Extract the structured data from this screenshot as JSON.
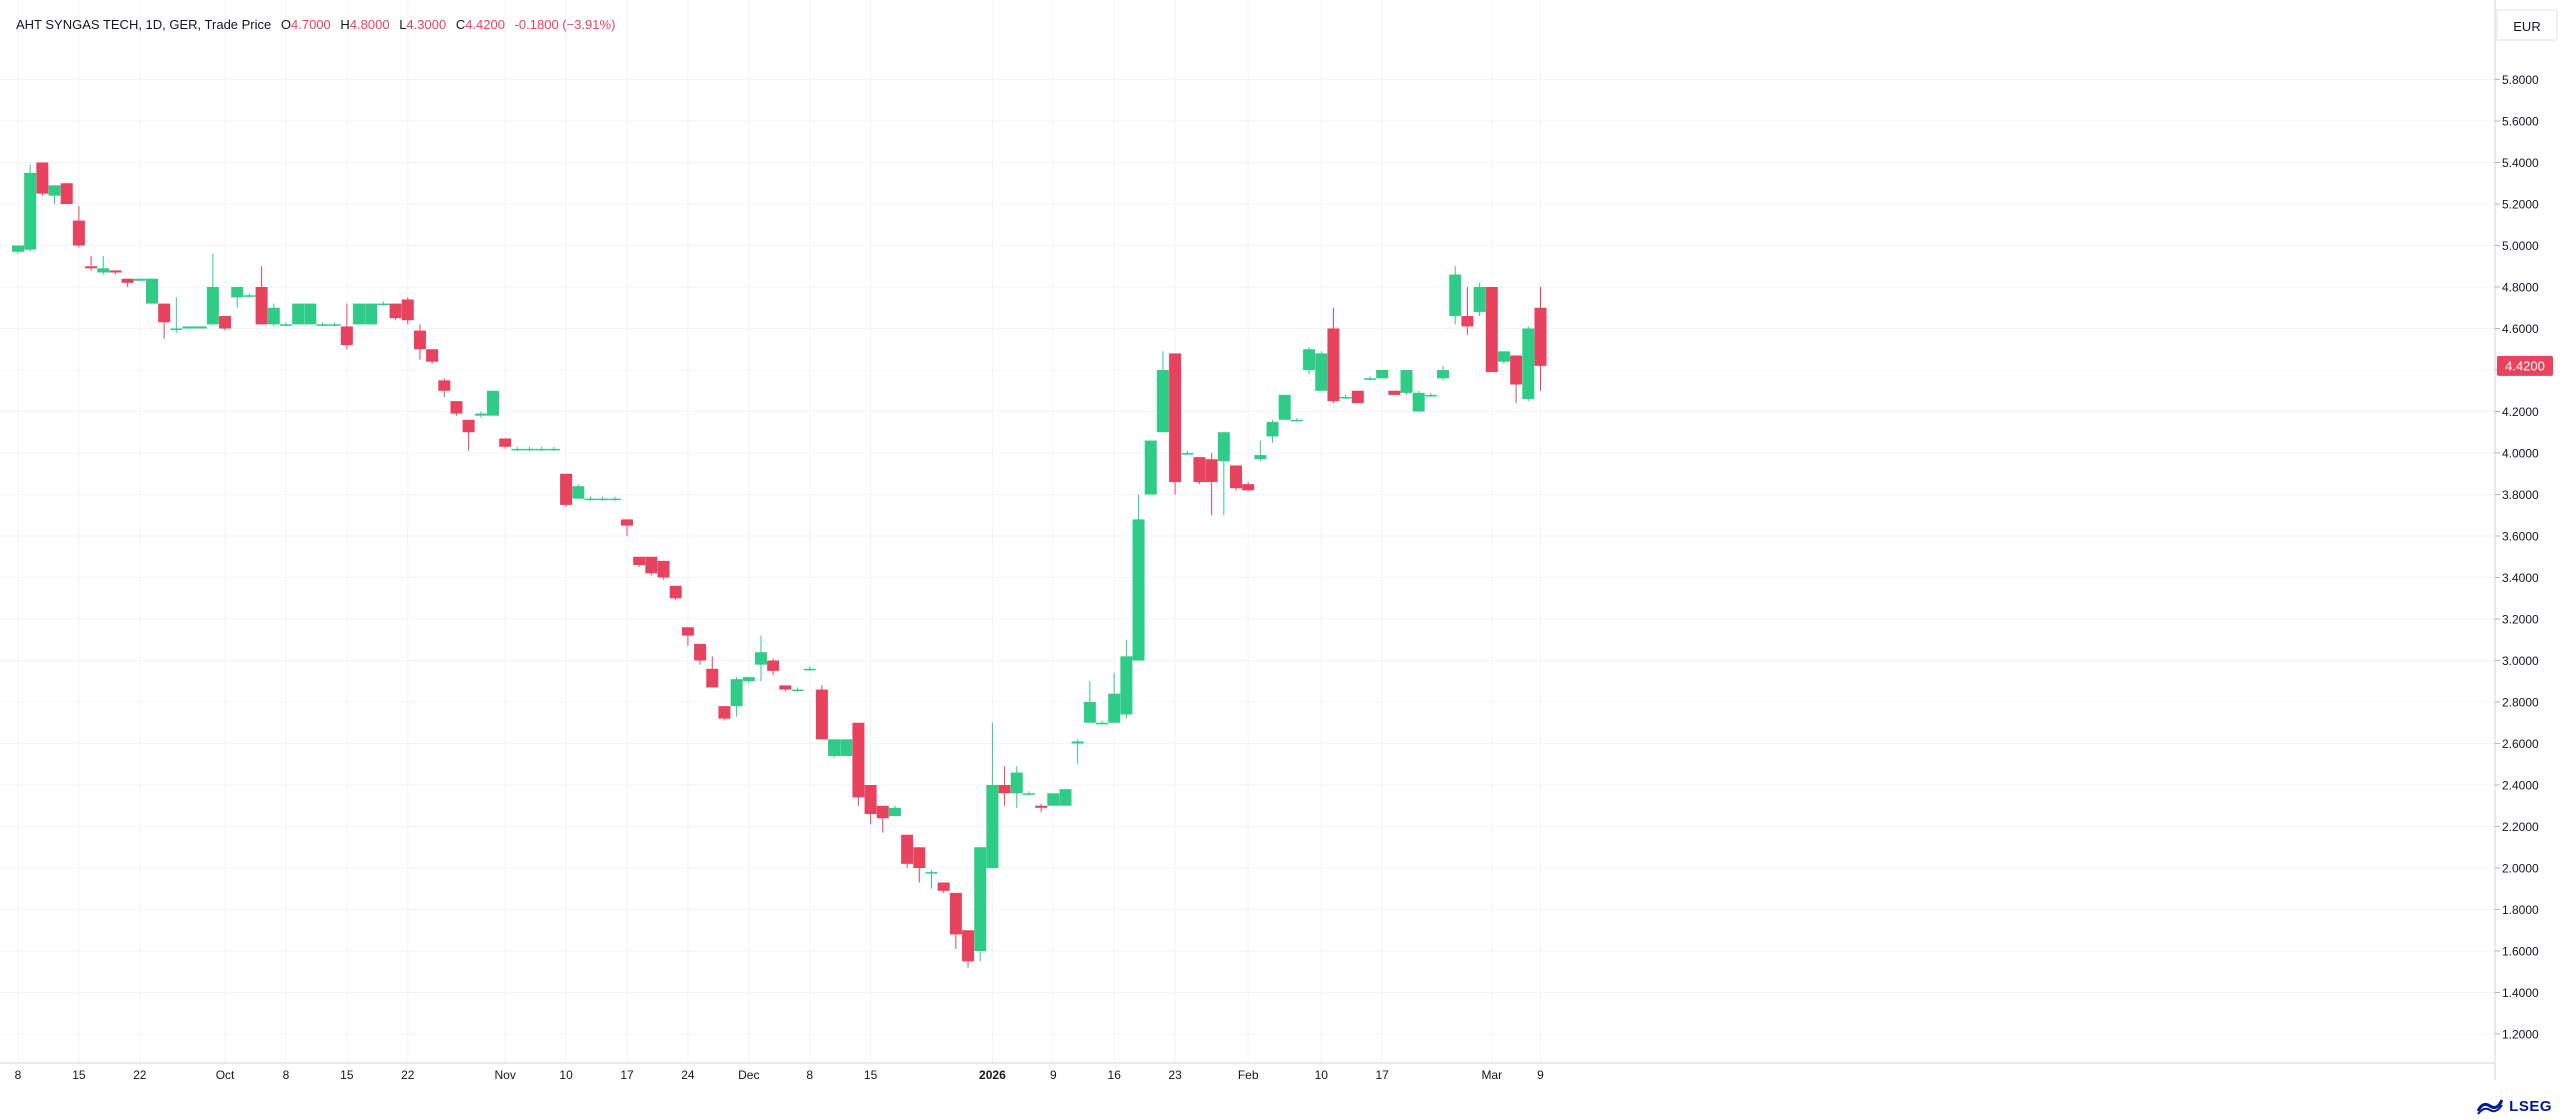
{
  "legend": {
    "symbol": "AHT SYNGAS TECH, 1D, GER, Trade Price",
    "o_label": "O",
    "o_value": "4.7000",
    "h_label": "H",
    "h_value": "4.8000",
    "l_label": "L",
    "l_value": "4.3000",
    "c_label": "C",
    "c_value": "4.4200",
    "change": "-0.1800 (−3.91%)"
  },
  "brand": {
    "name": "LSEG",
    "logo_icon": "lseg-logo-icon"
  },
  "colors": {
    "up": "#2ecc87",
    "down": "#e8435e",
    "grid": "#f0f3fa",
    "axis": "#787b86",
    "bg": "#ffffff"
  },
  "chart_data": {
    "type": "candlestick",
    "currency": "EUR",
    "last_price_label": "4.4200",
    "ylim": [
      1.1,
      5.95
    ],
    "y_ticks": [
      "5.8000",
      "5.6000",
      "5.4000",
      "5.2000",
      "5.0000",
      "4.8000",
      "4.6000",
      "4.4000",
      "4.2000",
      "4.0000",
      "3.8000",
      "3.6000",
      "3.4000",
      "3.2000",
      "3.0000",
      "2.8000",
      "2.6000",
      "2.4000",
      "2.2000",
      "2.0000",
      "1.8000",
      "1.6000",
      "1.4000",
      "1.2000"
    ],
    "x_ticks": [
      {
        "date": "2025-09-08",
        "label": "8",
        "bold": false
      },
      {
        "date": "2025-09-15",
        "label": "15",
        "bold": false
      },
      {
        "date": "2025-09-22",
        "label": "22",
        "bold": false
      },
      {
        "date": "2025-10-01",
        "label": "Oct",
        "bold": false
      },
      {
        "date": "2025-10-08",
        "label": "8",
        "bold": false
      },
      {
        "date": "2025-10-15",
        "label": "15",
        "bold": false
      },
      {
        "date": "2025-10-22",
        "label": "22",
        "bold": false
      },
      {
        "date": "2025-11-03",
        "label": "Nov",
        "bold": false
      },
      {
        "date": "2025-11-10",
        "label": "10",
        "bold": false
      },
      {
        "date": "2025-11-17",
        "label": "17",
        "bold": false
      },
      {
        "date": "2025-11-24",
        "label": "24",
        "bold": false
      },
      {
        "date": "2025-12-01",
        "label": "Dec",
        "bold": false
      },
      {
        "date": "2025-12-08",
        "label": "8",
        "bold": false
      },
      {
        "date": "2025-12-15",
        "label": "15",
        "bold": false
      },
      {
        "date": "2026-01-02",
        "label": "2026",
        "bold": true
      },
      {
        "date": "2026-01-09",
        "label": "9",
        "bold": false
      },
      {
        "date": "2026-01-16",
        "label": "16",
        "bold": false
      },
      {
        "date": "2026-01-23",
        "label": "23",
        "bold": false
      },
      {
        "date": "2026-02-02",
        "label": "Feb",
        "bold": false
      },
      {
        "date": "2026-02-10",
        "label": "10",
        "bold": false
      },
      {
        "date": "2026-02-17",
        "label": "17",
        "bold": false
      },
      {
        "date": "2026-03-02",
        "label": "Mar",
        "bold": false
      },
      {
        "date": "2026-03-09",
        "label": "9",
        "bold": false
      }
    ],
    "candles": [
      {
        "d": "2025-09-08",
        "o": 4.97,
        "h": 5.0,
        "l": 4.96,
        "c": 5.0
      },
      {
        "d": "2025-09-09",
        "o": 4.98,
        "h": 5.39,
        "l": 4.97,
        "c": 5.35
      },
      {
        "d": "2025-09-10",
        "o": 5.4,
        "h": 5.4,
        "l": 5.24,
        "c": 5.25
      },
      {
        "d": "2025-09-11",
        "o": 5.24,
        "h": 5.29,
        "l": 5.2,
        "c": 5.29
      },
      {
        "d": "2025-09-12",
        "o": 5.3,
        "h": 5.3,
        "l": 5.2,
        "c": 5.2
      },
      {
        "d": "2025-09-15",
        "o": 5.12,
        "h": 5.19,
        "l": 4.99,
        "c": 5.0
      },
      {
        "d": "2025-09-16",
        "o": 4.9,
        "h": 4.95,
        "l": 4.88,
        "c": 4.89
      },
      {
        "d": "2025-09-17",
        "o": 4.87,
        "h": 4.95,
        "l": 4.86,
        "c": 4.89
      },
      {
        "d": "2025-09-18",
        "o": 4.88,
        "h": 4.88,
        "l": 4.86,
        "c": 4.87
      },
      {
        "d": "2025-09-19",
        "o": 4.84,
        "h": 4.84,
        "l": 4.8,
        "c": 4.82
      },
      {
        "d": "2025-09-22",
        "o": 4.83,
        "h": 4.84,
        "l": 4.83,
        "c": 4.84
      },
      {
        "d": "2025-09-23",
        "o": 4.72,
        "h": 4.84,
        "l": 4.72,
        "c": 4.84
      },
      {
        "d": "2025-09-24",
        "o": 4.72,
        "h": 4.72,
        "l": 4.55,
        "c": 4.63
      },
      {
        "d": "2025-09-25",
        "o": 4.6,
        "h": 4.75,
        "l": 4.58,
        "c": 4.6
      },
      {
        "d": "2025-09-26",
        "o": 4.6,
        "h": 4.61,
        "l": 4.6,
        "c": 4.61
      },
      {
        "d": "2025-09-29",
        "o": 4.6,
        "h": 4.61,
        "l": 4.6,
        "c": 4.61
      },
      {
        "d": "2025-09-30",
        "o": 4.62,
        "h": 4.96,
        "l": 4.62,
        "c": 4.8
      },
      {
        "d": "2025-10-01",
        "o": 4.66,
        "h": 4.66,
        "l": 4.59,
        "c": 4.6
      },
      {
        "d": "2025-10-02",
        "o": 4.75,
        "h": 4.8,
        "l": 4.7,
        "c": 4.8
      },
      {
        "d": "2025-10-03",
        "o": 4.76,
        "h": 4.77,
        "l": 4.75,
        "c": 4.76
      },
      {
        "d": "2025-10-06",
        "o": 4.8,
        "h": 4.9,
        "l": 4.62,
        "c": 4.62
      },
      {
        "d": "2025-10-07",
        "o": 4.62,
        "h": 4.72,
        "l": 4.61,
        "c": 4.7
      },
      {
        "d": "2025-10-08",
        "o": 4.62,
        "h": 4.63,
        "l": 4.61,
        "c": 4.62
      },
      {
        "d": "2025-10-09",
        "o": 4.62,
        "h": 4.72,
        "l": 4.62,
        "c": 4.72
      },
      {
        "d": "2025-10-10",
        "o": 4.62,
        "h": 4.72,
        "l": 4.62,
        "c": 4.72
      },
      {
        "d": "2025-10-13",
        "o": 4.62,
        "h": 4.63,
        "l": 4.61,
        "c": 4.62
      },
      {
        "d": "2025-10-14",
        "o": 4.62,
        "h": 4.63,
        "l": 4.61,
        "c": 4.62
      },
      {
        "d": "2025-10-15",
        "o": 4.61,
        "h": 4.72,
        "l": 4.5,
        "c": 4.52
      },
      {
        "d": "2025-10-16",
        "o": 4.62,
        "h": 4.72,
        "l": 4.62,
        "c": 4.72
      },
      {
        "d": "2025-10-17",
        "o": 4.62,
        "h": 4.72,
        "l": 4.62,
        "c": 4.72
      },
      {
        "d": "2025-10-20",
        "o": 4.72,
        "h": 4.73,
        "l": 4.71,
        "c": 4.72
      },
      {
        "d": "2025-10-21",
        "o": 4.72,
        "h": 4.72,
        "l": 4.64,
        "c": 4.65
      },
      {
        "d": "2025-10-22",
        "o": 4.74,
        "h": 4.75,
        "l": 4.62,
        "c": 4.64
      },
      {
        "d": "2025-10-23",
        "o": 4.59,
        "h": 4.62,
        "l": 4.45,
        "c": 4.5
      },
      {
        "d": "2025-10-24",
        "o": 4.5,
        "h": 4.5,
        "l": 4.43,
        "c": 4.44
      },
      {
        "d": "2025-10-27",
        "o": 4.35,
        "h": 4.36,
        "l": 4.27,
        "c": 4.3
      },
      {
        "d": "2025-10-28",
        "o": 4.25,
        "h": 4.25,
        "l": 4.18,
        "c": 4.19
      },
      {
        "d": "2025-10-29",
        "o": 4.16,
        "h": 4.16,
        "l": 4.01,
        "c": 4.1
      },
      {
        "d": "2025-10-30",
        "o": 4.18,
        "h": 4.2,
        "l": 4.17,
        "c": 4.19
      },
      {
        "d": "2025-10-31",
        "o": 4.18,
        "h": 4.3,
        "l": 4.18,
        "c": 4.3
      },
      {
        "d": "2025-11-03",
        "o": 4.07,
        "h": 4.07,
        "l": 4.02,
        "c": 4.03
      },
      {
        "d": "2025-11-04",
        "o": 4.02,
        "h": 4.03,
        "l": 4.01,
        "c": 4.02
      },
      {
        "d": "2025-11-05",
        "o": 4.02,
        "h": 4.03,
        "l": 4.01,
        "c": 4.02
      },
      {
        "d": "2025-11-06",
        "o": 4.02,
        "h": 4.03,
        "l": 4.01,
        "c": 4.02
      },
      {
        "d": "2025-11-07",
        "o": 4.02,
        "h": 4.03,
        "l": 4.01,
        "c": 4.02
      },
      {
        "d": "2025-11-10",
        "o": 3.9,
        "h": 3.9,
        "l": 3.74,
        "c": 3.75
      },
      {
        "d": "2025-11-11",
        "o": 3.78,
        "h": 3.85,
        "l": 3.78,
        "c": 3.84
      },
      {
        "d": "2025-11-12",
        "o": 3.78,
        "h": 3.79,
        "l": 3.77,
        "c": 3.78
      },
      {
        "d": "2025-11-13",
        "o": 3.78,
        "h": 3.79,
        "l": 3.77,
        "c": 3.78
      },
      {
        "d": "2025-11-14",
        "o": 3.78,
        "h": 3.79,
        "l": 3.77,
        "c": 3.78
      },
      {
        "d": "2025-11-17",
        "o": 3.68,
        "h": 3.68,
        "l": 3.6,
        "c": 3.65
      },
      {
        "d": "2025-11-18",
        "o": 3.5,
        "h": 3.5,
        "l": 3.45,
        "c": 3.46
      },
      {
        "d": "2025-11-19",
        "o": 3.5,
        "h": 3.5,
        "l": 3.41,
        "c": 3.42
      },
      {
        "d": "2025-11-20",
        "o": 3.48,
        "h": 3.48,
        "l": 3.39,
        "c": 3.4
      },
      {
        "d": "2025-11-21",
        "o": 3.36,
        "h": 3.36,
        "l": 3.29,
        "c": 3.3
      },
      {
        "d": "2025-11-24",
        "o": 3.16,
        "h": 3.16,
        "l": 3.07,
        "c": 3.12
      },
      {
        "d": "2025-11-25",
        "o": 3.08,
        "h": 3.08,
        "l": 2.98,
        "c": 3.0
      },
      {
        "d": "2025-11-26",
        "o": 2.96,
        "h": 3.02,
        "l": 2.87,
        "c": 2.87
      },
      {
        "d": "2025-11-27",
        "o": 2.78,
        "h": 2.78,
        "l": 2.71,
        "c": 2.72
      },
      {
        "d": "2025-11-28",
        "o": 2.78,
        "h": 2.92,
        "l": 2.73,
        "c": 2.91
      },
      {
        "d": "2025-12-01",
        "o": 2.9,
        "h": 2.92,
        "l": 2.89,
        "c": 2.92
      },
      {
        "d": "2025-12-02",
        "o": 2.98,
        "h": 3.12,
        "l": 2.9,
        "c": 3.04
      },
      {
        "d": "2025-12-03",
        "o": 3.0,
        "h": 3.01,
        "l": 2.93,
        "c": 2.95
      },
      {
        "d": "2025-12-04",
        "o": 2.88,
        "h": 2.88,
        "l": 2.85,
        "c": 2.86
      },
      {
        "d": "2025-12-05",
        "o": 2.86,
        "h": 2.87,
        "l": 2.85,
        "c": 2.86
      },
      {
        "d": "2025-12-08",
        "o": 2.96,
        "h": 2.97,
        "l": 2.95,
        "c": 2.96
      },
      {
        "d": "2025-12-09",
        "o": 2.86,
        "h": 2.88,
        "l": 2.62,
        "c": 2.62
      },
      {
        "d": "2025-12-10",
        "o": 2.54,
        "h": 2.62,
        "l": 2.53,
        "c": 2.62
      },
      {
        "d": "2025-12-11",
        "o": 2.54,
        "h": 2.62,
        "l": 2.54,
        "c": 2.62
      },
      {
        "d": "2025-12-12",
        "o": 2.7,
        "h": 2.7,
        "l": 2.3,
        "c": 2.34
      },
      {
        "d": "2025-12-15",
        "o": 2.4,
        "h": 2.4,
        "l": 2.21,
        "c": 2.26
      },
      {
        "d": "2025-12-16",
        "o": 2.3,
        "h": 2.3,
        "l": 2.17,
        "c": 2.24
      },
      {
        "d": "2025-12-17",
        "o": 2.25,
        "h": 2.3,
        "l": 2.25,
        "c": 2.29
      },
      {
        "d": "2025-12-18",
        "o": 2.16,
        "h": 2.16,
        "l": 2.0,
        "c": 2.02
      },
      {
        "d": "2025-12-19",
        "o": 2.1,
        "h": 2.1,
        "l": 1.93,
        "c": 2.0
      },
      {
        "d": "2025-12-22",
        "o": 1.98,
        "h": 1.99,
        "l": 1.9,
        "c": 1.98
      },
      {
        "d": "2025-12-23",
        "o": 1.93,
        "h": 1.93,
        "l": 1.88,
        "c": 1.89
      },
      {
        "d": "2025-12-29",
        "o": 1.88,
        "h": 1.88,
        "l": 1.61,
        "c": 1.68
      },
      {
        "d": "2025-12-30",
        "o": 1.7,
        "h": 1.7,
        "l": 1.52,
        "c": 1.55
      },
      {
        "d": "2026-01-01",
        "o": 1.6,
        "h": 2.1,
        "l": 1.55,
        "c": 2.1
      },
      {
        "d": "2026-01-02",
        "o": 2.0,
        "h": 2.7,
        "l": 2.0,
        "c": 2.4
      },
      {
        "d": "2026-01-05",
        "o": 2.4,
        "h": 2.49,
        "l": 2.3,
        "c": 2.36
      },
      {
        "d": "2026-01-06",
        "o": 2.36,
        "h": 2.49,
        "l": 2.29,
        "c": 2.46
      },
      {
        "d": "2026-01-07",
        "o": 2.36,
        "h": 2.37,
        "l": 2.35,
        "c": 2.36
      },
      {
        "d": "2026-01-08",
        "o": 2.3,
        "h": 2.31,
        "l": 2.27,
        "c": 2.29
      },
      {
        "d": "2026-01-09",
        "o": 2.3,
        "h": 2.36,
        "l": 2.3,
        "c": 2.36
      },
      {
        "d": "2026-01-12",
        "o": 2.3,
        "h": 2.38,
        "l": 2.3,
        "c": 2.38
      },
      {
        "d": "2026-01-13",
        "o": 2.6,
        "h": 2.62,
        "l": 2.5,
        "c": 2.61
      },
      {
        "d": "2026-01-14",
        "o": 2.7,
        "h": 2.9,
        "l": 2.7,
        "c": 2.8
      },
      {
        "d": "2026-01-15",
        "o": 2.7,
        "h": 2.71,
        "l": 2.69,
        "c": 2.7
      },
      {
        "d": "2026-01-16",
        "o": 2.7,
        "h": 2.94,
        "l": 2.7,
        "c": 2.84
      },
      {
        "d": "2026-01-19",
        "o": 2.74,
        "h": 3.1,
        "l": 2.72,
        "c": 3.02
      },
      {
        "d": "2026-01-20",
        "o": 3.0,
        "h": 3.8,
        "l": 3.0,
        "c": 3.68
      },
      {
        "d": "2026-01-21",
        "o": 3.8,
        "h": 4.06,
        "l": 3.8,
        "c": 4.06
      },
      {
        "d": "2026-01-22",
        "o": 4.1,
        "h": 4.49,
        "l": 4.1,
        "c": 4.4
      },
      {
        "d": "2026-01-23",
        "o": 4.48,
        "h": 4.48,
        "l": 3.8,
        "c": 3.86
      },
      {
        "d": "2026-01-26",
        "o": 4.0,
        "h": 4.01,
        "l": 3.99,
        "c": 4.0
      },
      {
        "d": "2026-01-27",
        "o": 3.98,
        "h": 3.98,
        "l": 3.85,
        "c": 3.86
      },
      {
        "d": "2026-01-28",
        "o": 3.97,
        "h": 4.0,
        "l": 3.7,
        "c": 3.86
      },
      {
        "d": "2026-01-29",
        "o": 3.96,
        "h": 4.1,
        "l": 3.7,
        "c": 4.1
      },
      {
        "d": "2026-01-30",
        "o": 3.94,
        "h": 3.94,
        "l": 3.82,
        "c": 3.83
      },
      {
        "d": "2026-02-02",
        "o": 3.85,
        "h": 3.86,
        "l": 3.82,
        "c": 3.82
      },
      {
        "d": "2026-02-03",
        "o": 3.97,
        "h": 4.06,
        "l": 3.96,
        "c": 3.99
      },
      {
        "d": "2026-02-04",
        "o": 4.08,
        "h": 4.16,
        "l": 4.05,
        "c": 4.15
      },
      {
        "d": "2026-02-05",
        "o": 4.16,
        "h": 4.28,
        "l": 4.16,
        "c": 4.28
      },
      {
        "d": "2026-02-06",
        "o": 4.16,
        "h": 4.17,
        "l": 4.15,
        "c": 4.16
      },
      {
        "d": "2026-02-09",
        "o": 4.4,
        "h": 4.51,
        "l": 4.38,
        "c": 4.5
      },
      {
        "d": "2026-02-10",
        "o": 4.3,
        "h": 4.49,
        "l": 4.3,
        "c": 4.48
      },
      {
        "d": "2026-02-11",
        "o": 4.6,
        "h": 4.7,
        "l": 4.24,
        "c": 4.25
      },
      {
        "d": "2026-02-12",
        "o": 4.27,
        "h": 4.28,
        "l": 4.26,
        "c": 4.27
      },
      {
        "d": "2026-02-13",
        "o": 4.3,
        "h": 4.3,
        "l": 4.24,
        "c": 4.24
      },
      {
        "d": "2026-02-16",
        "o": 4.36,
        "h": 4.37,
        "l": 4.35,
        "c": 4.36
      },
      {
        "d": "2026-02-17",
        "o": 4.36,
        "h": 4.4,
        "l": 4.36,
        "c": 4.4
      },
      {
        "d": "2026-02-18",
        "o": 4.3,
        "h": 4.3,
        "l": 4.28,
        "c": 4.28
      },
      {
        "d": "2026-02-19",
        "o": 4.29,
        "h": 4.4,
        "l": 4.28,
        "c": 4.4
      },
      {
        "d": "2026-02-20",
        "o": 4.2,
        "h": 4.3,
        "l": 4.2,
        "c": 4.29
      },
      {
        "d": "2026-02-23",
        "o": 4.28,
        "h": 4.29,
        "l": 4.27,
        "c": 4.28
      },
      {
        "d": "2026-02-24",
        "o": 4.36,
        "h": 4.42,
        "l": 4.35,
        "c": 4.4
      },
      {
        "d": "2026-02-25",
        "o": 4.66,
        "h": 4.9,
        "l": 4.62,
        "c": 4.86
      },
      {
        "d": "2026-02-26",
        "o": 4.66,
        "h": 4.8,
        "l": 4.57,
        "c": 4.61
      },
      {
        "d": "2026-02-27",
        "o": 4.68,
        "h": 4.82,
        "l": 4.66,
        "c": 4.8
      },
      {
        "d": "2026-03-02",
        "o": 4.8,
        "h": 4.8,
        "l": 4.39,
        "c": 4.39
      },
      {
        "d": "2026-03-03",
        "o": 4.44,
        "h": 4.49,
        "l": 4.43,
        "c": 4.49
      },
      {
        "d": "2026-03-04",
        "o": 4.47,
        "h": 4.47,
        "l": 4.24,
        "c": 4.33
      },
      {
        "d": "2026-03-05",
        "o": 4.26,
        "h": 4.61,
        "l": 4.25,
        "c": 4.6
      },
      {
        "d": "2026-03-06",
        "o": 4.7,
        "h": 4.8,
        "l": 4.3,
        "c": 4.42
      }
    ]
  }
}
